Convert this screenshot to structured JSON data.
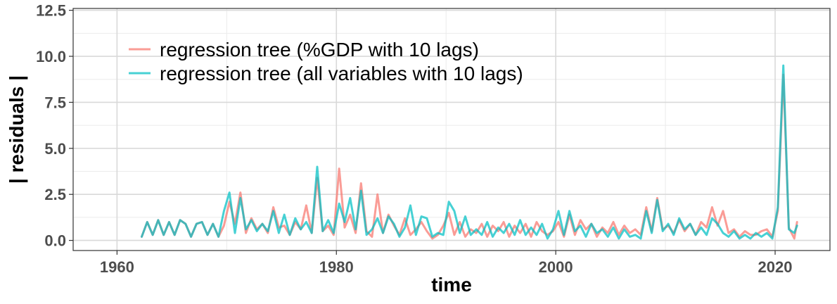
{
  "chart_data": {
    "type": "line",
    "xlabel": "time",
    "ylabel": "| residuals |",
    "xlim": [
      1956,
      2025
    ],
    "ylim": [
      -0.55,
      12.6
    ],
    "xticks": [
      1960,
      1980,
      2000,
      2020
    ],
    "xtick_labels": [
      "1960",
      "1980",
      "2000",
      "2020"
    ],
    "yticks": [
      0,
      2.5,
      5,
      7.5,
      10,
      12.5
    ],
    "ytick_labels": [
      "0.0",
      "2.5",
      "5.0",
      "7.5",
      "10.0",
      "12.5"
    ],
    "grid": true,
    "legend_position": "top-left",
    "series": [
      {
        "name": "regression tree (%GDP with 10 lags)",
        "color": "#F8766D",
        "x": [
          1962.25,
          1962.75,
          1963.25,
          1963.75,
          1964.25,
          1964.75,
          1965.25,
          1965.75,
          1966.25,
          1966.75,
          1967.25,
          1967.75,
          1968.25,
          1968.75,
          1969.25,
          1969.75,
          1970.25,
          1970.75,
          1971.25,
          1971.75,
          1972.25,
          1972.75,
          1973.25,
          1973.75,
          1974.25,
          1974.75,
          1975.25,
          1975.75,
          1976.25,
          1976.75,
          1977.25,
          1977.75,
          1978.25,
          1978.75,
          1979.25,
          1979.75,
          1980.25,
          1980.75,
          1981.25,
          1981.75,
          1982.25,
          1982.75,
          1983.25,
          1983.75,
          1984.25,
          1984.75,
          1985.25,
          1985.75,
          1986.25,
          1986.75,
          1987.25,
          1987.75,
          1988.25,
          1988.75,
          1989.25,
          1989.75,
          1990.25,
          1990.75,
          1991.25,
          1991.75,
          1992.25,
          1992.75,
          1993.25,
          1993.75,
          1994.25,
          1994.75,
          1995.25,
          1995.75,
          1996.25,
          1996.75,
          1997.25,
          1997.75,
          1998.25,
          1998.75,
          1999.25,
          1999.75,
          2000.25,
          2000.75,
          2001.25,
          2001.75,
          2002.25,
          2002.75,
          2003.25,
          2003.75,
          2004.25,
          2004.75,
          2005.25,
          2005.75,
          2006.25,
          2006.75,
          2007.25,
          2007.75,
          2008.25,
          2008.75,
          2009.25,
          2009.75,
          2010.25,
          2010.75,
          2011.25,
          2011.75,
          2012.25,
          2012.75,
          2013.25,
          2013.75,
          2014.25,
          2014.75,
          2015.25,
          2015.75,
          2016.25,
          2016.75,
          2017.25,
          2017.75,
          2018.25,
          2018.75,
          2019.25,
          2019.75,
          2020.25,
          2020.75,
          2021.25,
          2021.75,
          2022.0
        ],
        "y": [
          0.2,
          1.0,
          0.3,
          1.1,
          0.3,
          1.0,
          0.3,
          1.1,
          0.9,
          0.2,
          0.9,
          1.0,
          0.3,
          0.9,
          0.2,
          0.8,
          2.1,
          0.9,
          2.6,
          0.4,
          1.2,
          0.6,
          0.9,
          0.4,
          1.8,
          0.7,
          0.8,
          0.3,
          1.0,
          0.6,
          1.9,
          0.4,
          3.4,
          0.5,
          0.8,
          0.3,
          3.9,
          0.7,
          1.4,
          0.4,
          3.1,
          0.5,
          0.2,
          2.5,
          0.4,
          1.4,
          0.8,
          0.3,
          1.2,
          0.3,
          0.6,
          1.0,
          0.5,
          0.1,
          0.3,
          0.8,
          1.5,
          0.3,
          1.0,
          0.2,
          0.6,
          0.4,
          0.9,
          0.2,
          0.8,
          0.5,
          1.0,
          0.2,
          0.8,
          0.4,
          0.9,
          0.2,
          1.0,
          0.5,
          0.3,
          0.5,
          1.0,
          0.2,
          1.4,
          0.3,
          1.1,
          0.6,
          0.9,
          0.2,
          0.7,
          0.4,
          1.0,
          0.3,
          0.8,
          0.4,
          0.6,
          0.3,
          1.8,
          0.5,
          2.3,
          0.6,
          0.8,
          0.4,
          1.1,
          0.5,
          0.9,
          0.3,
          1.0,
          0.7,
          1.8,
          0.8,
          1.6,
          0.4,
          0.6,
          0.2,
          0.5,
          0.3,
          0.3,
          0.5,
          0.6,
          0.2,
          1.6,
          9.0,
          0.7,
          0.1,
          1.0
        ]
      },
      {
        "name": "regression tree (all variables with 10 lags)",
        "color": "#00BFC4",
        "x": [
          1962.25,
          1962.75,
          1963.25,
          1963.75,
          1964.25,
          1964.75,
          1965.25,
          1965.75,
          1966.25,
          1966.75,
          1967.25,
          1967.75,
          1968.25,
          1968.75,
          1969.25,
          1969.75,
          1970.25,
          1970.75,
          1971.25,
          1971.75,
          1972.25,
          1972.75,
          1973.25,
          1973.75,
          1974.25,
          1974.75,
          1975.25,
          1975.75,
          1976.25,
          1976.75,
          1977.25,
          1977.75,
          1978.25,
          1978.75,
          1979.25,
          1979.75,
          1980.25,
          1980.75,
          1981.25,
          1981.75,
          1982.25,
          1982.75,
          1983.25,
          1983.75,
          1984.25,
          1984.75,
          1985.25,
          1985.75,
          1986.25,
          1986.75,
          1987.25,
          1987.75,
          1988.25,
          1988.75,
          1989.25,
          1989.75,
          1990.25,
          1990.75,
          1991.25,
          1991.75,
          1992.25,
          1992.75,
          1993.25,
          1993.75,
          1994.25,
          1994.75,
          1995.25,
          1995.75,
          1996.25,
          1996.75,
          1997.25,
          1997.75,
          1998.25,
          1998.75,
          1999.25,
          1999.75,
          2000.25,
          2000.75,
          2001.25,
          2001.75,
          2002.25,
          2002.75,
          2003.25,
          2003.75,
          2004.25,
          2004.75,
          2005.25,
          2005.75,
          2006.25,
          2006.75,
          2007.25,
          2007.75,
          2008.25,
          2008.75,
          2009.25,
          2009.75,
          2010.25,
          2010.75,
          2011.25,
          2011.75,
          2012.25,
          2012.75,
          2013.25,
          2013.75,
          2014.25,
          2014.75,
          2015.25,
          2015.75,
          2016.25,
          2016.75,
          2017.25,
          2017.75,
          2018.25,
          2018.75,
          2019.25,
          2019.75,
          2020.25,
          2020.75,
          2021.25,
          2021.75,
          2022.0
        ],
        "y": [
          0.2,
          1.0,
          0.3,
          1.1,
          0.3,
          1.0,
          0.3,
          1.1,
          0.9,
          0.2,
          0.9,
          1.0,
          0.3,
          0.9,
          0.2,
          1.6,
          2.6,
          0.4,
          2.3,
          0.6,
          1.1,
          0.5,
          0.9,
          0.5,
          1.6,
          0.4,
          1.4,
          0.3,
          1.2,
          0.6,
          1.0,
          0.4,
          4.0,
          0.5,
          1.1,
          0.4,
          2.0,
          1.0,
          2.3,
          0.6,
          2.7,
          0.3,
          0.6,
          1.2,
          0.4,
          1.3,
          0.9,
          0.2,
          0.7,
          1.9,
          0.3,
          1.3,
          1.2,
          0.2,
          0.4,
          0.3,
          2.1,
          1.6,
          0.4,
          1.3,
          0.3,
          0.6,
          0.3,
          1.0,
          0.2,
          0.7,
          0.4,
          0.9,
          0.3,
          1.1,
          0.3,
          0.7,
          0.3,
          0.9,
          0.1,
          0.6,
          1.6,
          0.3,
          1.6,
          0.5,
          0.8,
          0.2,
          0.9,
          0.4,
          0.6,
          0.2,
          0.7,
          0.1,
          0.6,
          0.2,
          0.3,
          0.1,
          1.6,
          0.4,
          2.2,
          0.5,
          0.9,
          0.3,
          1.2,
          0.6,
          0.9,
          0.3,
          0.7,
          0.3,
          1.2,
          0.9,
          0.4,
          0.2,
          0.5,
          0.1,
          0.3,
          0.1,
          0.4,
          0.2,
          0.4,
          0.1,
          1.8,
          9.5,
          0.6,
          0.4,
          0.8
        ]
      }
    ]
  }
}
